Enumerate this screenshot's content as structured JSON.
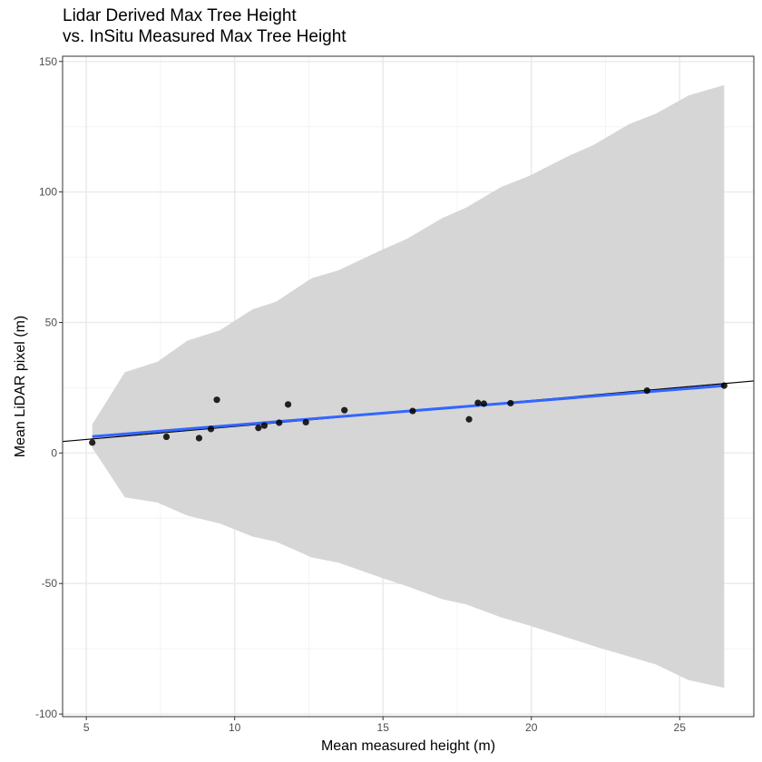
{
  "chart_data": {
    "type": "scatter",
    "title_lines": [
      "Lidar Derived Max Tree Height",
      "vs. InSitu Measured Max Tree Height"
    ],
    "xlabel": "Mean measured height (m)",
    "ylabel": "Mean LiDAR pixel (m)",
    "xlim": [
      4.2,
      27.5
    ],
    "ylim": [
      -101,
      152
    ],
    "x_ticks": [
      5,
      10,
      15,
      20,
      25
    ],
    "y_ticks": [
      -100,
      -50,
      0,
      50,
      100,
      150
    ],
    "x_tick_labels": [
      "5",
      "10",
      "15",
      "20",
      "25"
    ],
    "y_tick_labels": [
      "-100",
      "-50",
      "0",
      "50",
      "100",
      "150"
    ],
    "grid": true,
    "points": [
      {
        "x": 5.2,
        "y": 4.0
      },
      {
        "x": 7.7,
        "y": 6.2
      },
      {
        "x": 8.8,
        "y": 5.7
      },
      {
        "x": 9.2,
        "y": 9.2
      },
      {
        "x": 9.4,
        "y": 20.4
      },
      {
        "x": 10.8,
        "y": 9.6
      },
      {
        "x": 11.0,
        "y": 10.5
      },
      {
        "x": 11.5,
        "y": 11.6
      },
      {
        "x": 11.8,
        "y": 18.6
      },
      {
        "x": 12.4,
        "y": 11.8
      },
      {
        "x": 13.7,
        "y": 16.4
      },
      {
        "x": 16.0,
        "y": 16.1
      },
      {
        "x": 17.9,
        "y": 12.9
      },
      {
        "x": 18.2,
        "y": 19.2
      },
      {
        "x": 18.4,
        "y": 18.9
      },
      {
        "x": 19.3,
        "y": 19.1
      },
      {
        "x": 23.9,
        "y": 23.9
      },
      {
        "x": 26.5,
        "y": 25.8
      }
    ],
    "fit_lines": [
      {
        "name": "",
        "x": [
          4.2,
          27.5
        ],
        "y": [
          4.4,
          27.6
        ],
        "color": "#000000"
      },
      {
        "name": "",
        "x": [
          5.2,
          26.5
        ],
        "y": [
          6.3,
          25.8
        ],
        "color": "#3366FF"
      }
    ],
    "confidence_ribbon": {
      "x": [
        5.2,
        6.3,
        7.4,
        8.4,
        9.5,
        10.6,
        11.4,
        12.6,
        13.5,
        15.0,
        15.8,
        17.0,
        17.8,
        19.0,
        19.9,
        21.3,
        22.1,
        23.3,
        24.2,
        25.3,
        26.5
      ],
      "upper": [
        11.0,
        31.0,
        35.0,
        43.0,
        47.0,
        55.0,
        58.0,
        67.0,
        70.0,
        78.0,
        82.0,
        90.0,
        94.0,
        102.0,
        106.0,
        114.0,
        118.0,
        126.0,
        130.0,
        137.0,
        141.0
      ],
      "lower": [
        2.0,
        -17.0,
        -19.0,
        -24.0,
        -27.0,
        -32.0,
        -34.0,
        -40.0,
        -42.0,
        -48.0,
        -51.0,
        -56.0,
        -58.0,
        -63.0,
        -66.0,
        -71.0,
        -74.0,
        -78.0,
        -81.0,
        -87.0,
        -90.0
      ],
      "color": "#D6D6D6"
    }
  }
}
